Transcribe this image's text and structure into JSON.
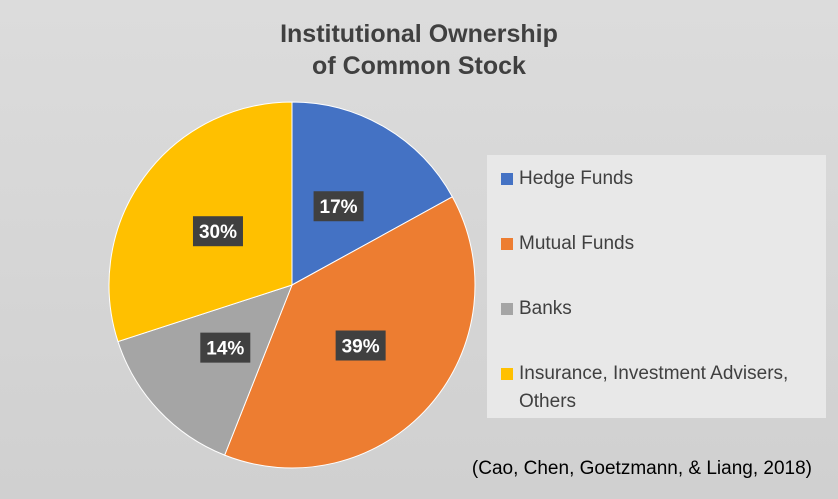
{
  "chart_data": {
    "type": "pie",
    "title": [
      "Institutional Ownership",
      "of Common Stock"
    ],
    "categories": [
      "Hedge Funds",
      "Mutual Funds",
      "Banks",
      "Insurance, Investment Advisers, Others"
    ],
    "values": [
      17,
      39,
      14,
      30
    ],
    "value_labels": [
      "17%",
      "39%",
      "14%",
      "30%"
    ],
    "colors": [
      "#4472c4",
      "#ed7d31",
      "#a5a5a5",
      "#ffc000"
    ],
    "legend": "right",
    "annotation": "(Cao, Chen, Goetzmann, & Liang, 2018)"
  }
}
